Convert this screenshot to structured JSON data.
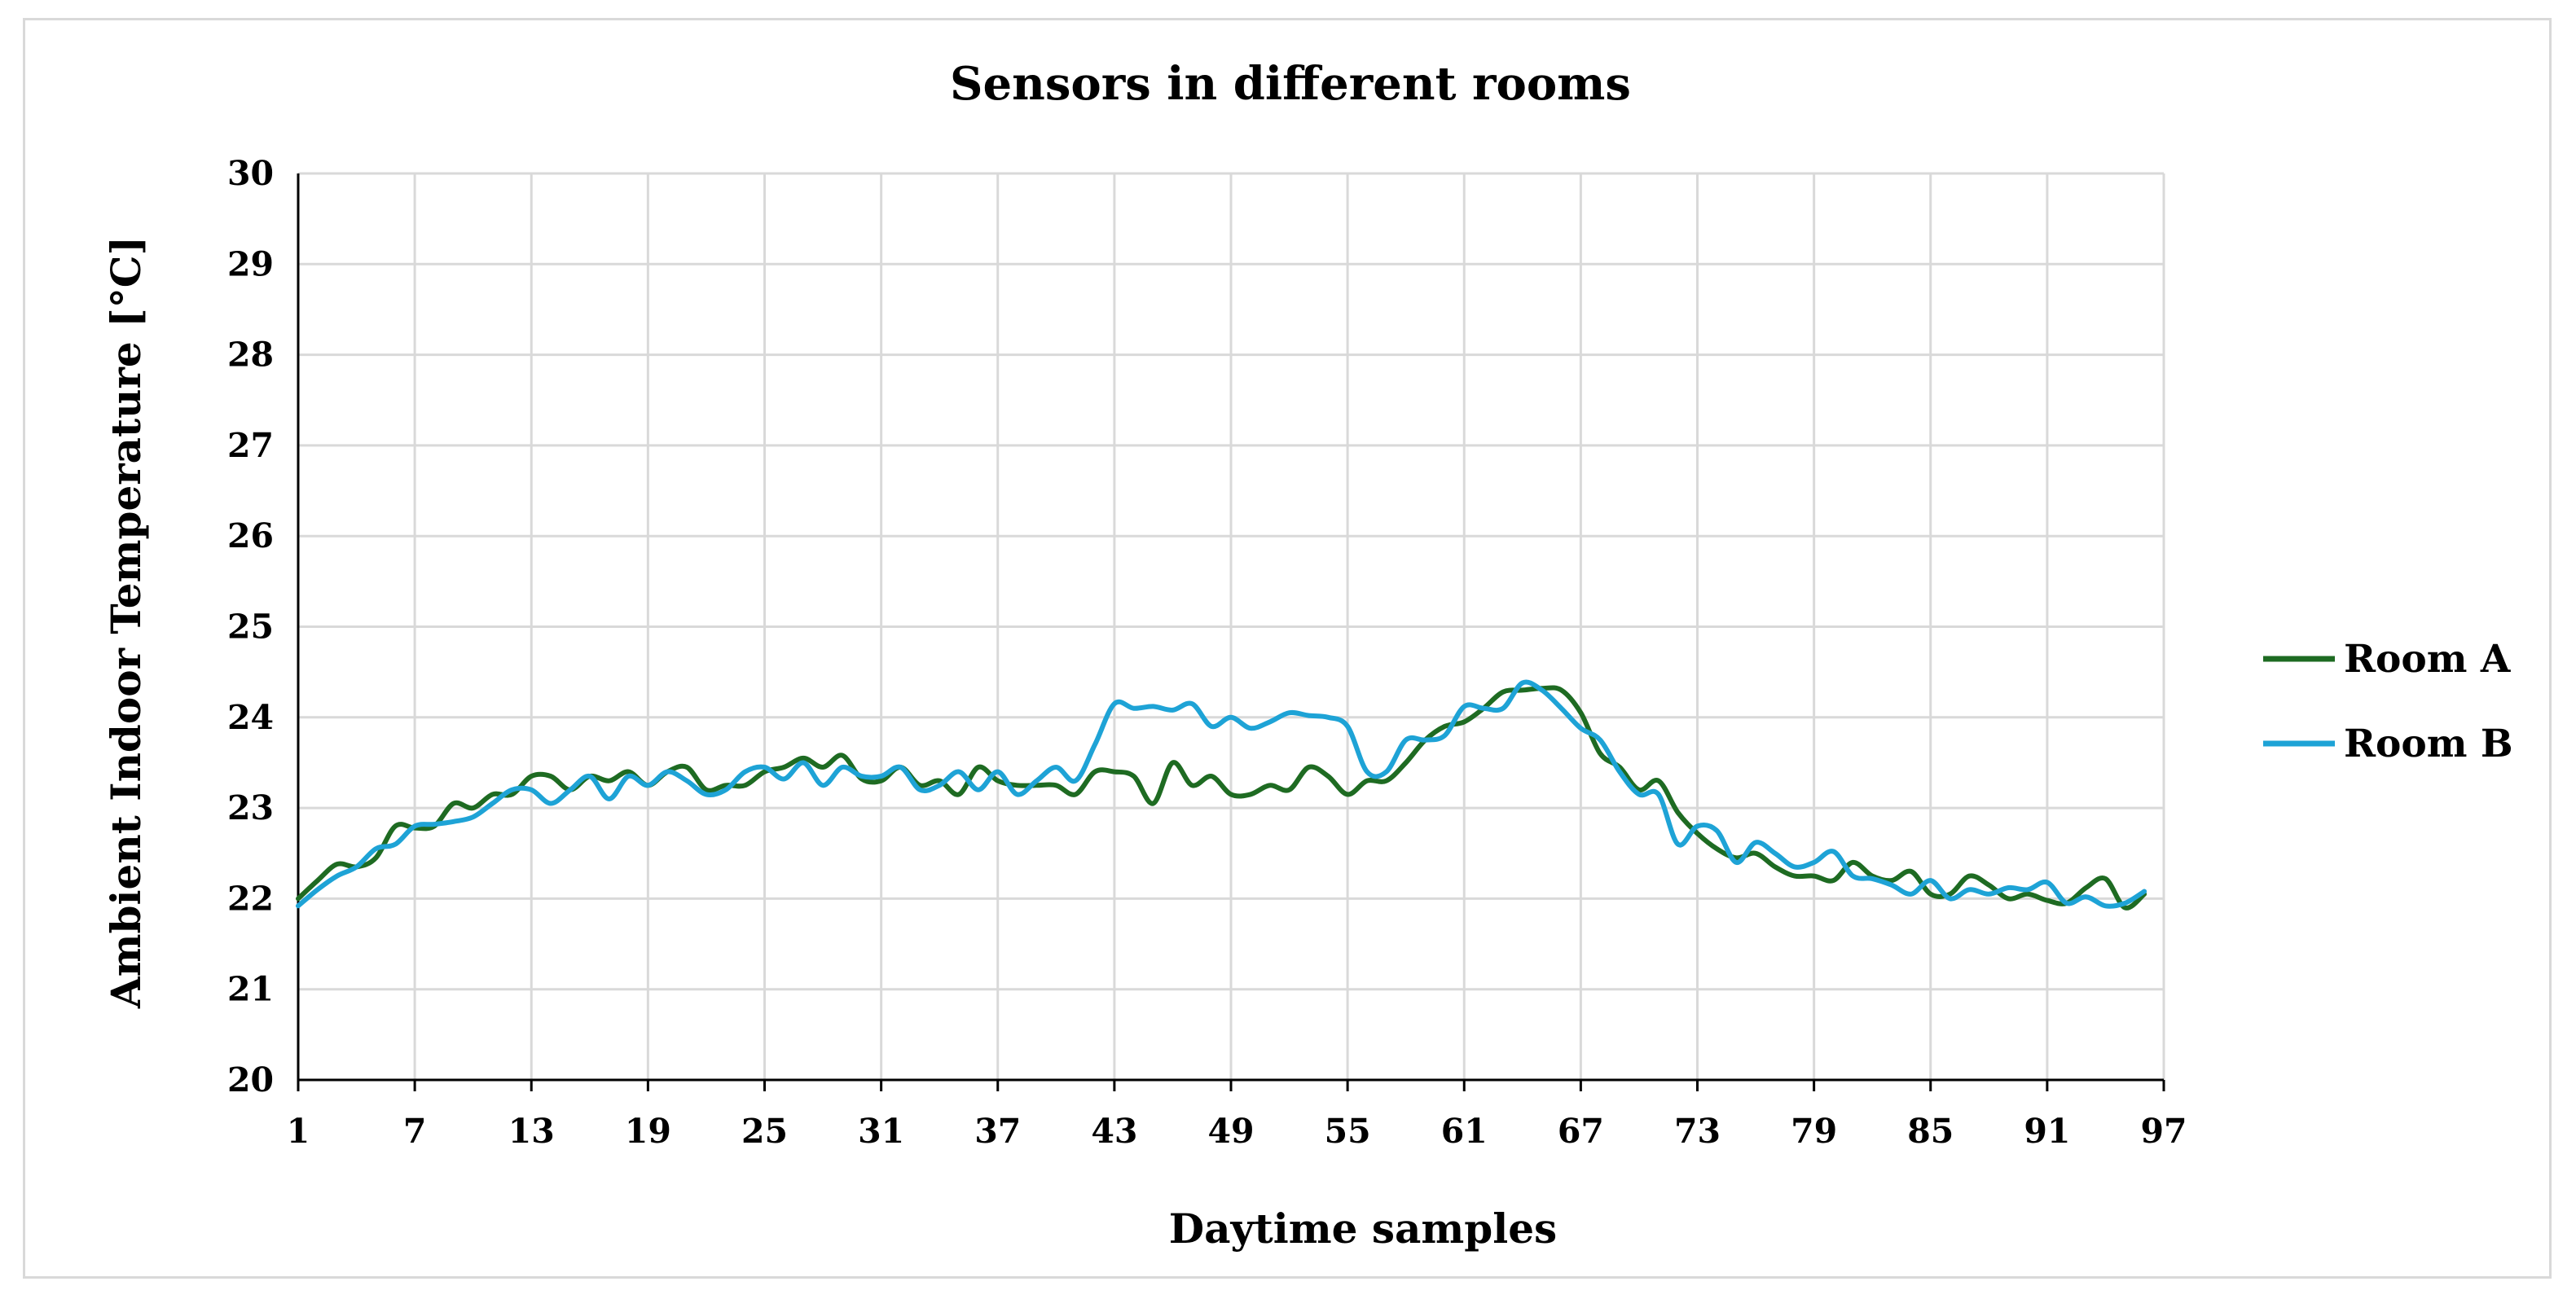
{
  "chart_data": {
    "type": "line",
    "title": "Sensors in different rooms",
    "xlabel": "Daytime samples",
    "ylabel": "Ambient Indoor Temperature [°C]",
    "ylim": [
      20,
      30
    ],
    "xlim": [
      1,
      97
    ],
    "x_ticks": [
      "1",
      "7",
      "13",
      "19",
      "25",
      "31",
      "37",
      "43",
      "49",
      "55",
      "61",
      "67",
      "73",
      "79",
      "85",
      "91",
      "97"
    ],
    "y_ticks": [
      "20",
      "21",
      "22",
      "23",
      "24",
      "25",
      "26",
      "27",
      "28",
      "29",
      "30"
    ],
    "grid": true,
    "legend_position": "right",
    "series": [
      {
        "name": "Room A",
        "color": "#1e6b22",
        "values": [
          22.0,
          22.2,
          22.38,
          22.35,
          22.45,
          22.8,
          22.78,
          22.8,
          23.05,
          23.0,
          23.15,
          23.15,
          23.35,
          23.35,
          23.2,
          23.35,
          23.3,
          23.4,
          23.25,
          23.4,
          23.45,
          23.2,
          23.25,
          23.25,
          23.4,
          23.45,
          23.55,
          23.45,
          23.58,
          23.32,
          23.3,
          23.45,
          23.25,
          23.3,
          23.15,
          23.45,
          23.3,
          23.25,
          23.25,
          23.25,
          23.15,
          23.4,
          23.4,
          23.35,
          23.05,
          23.5,
          23.25,
          23.35,
          23.15,
          23.15,
          23.25,
          23.2,
          23.45,
          23.35,
          23.15,
          23.3,
          23.3,
          23.5,
          23.75,
          23.9,
          23.95,
          24.1,
          24.28,
          24.3,
          24.32,
          24.3,
          24.05,
          23.6,
          23.45,
          23.2,
          23.3,
          22.95,
          22.72,
          22.55,
          22.45,
          22.5,
          22.35,
          22.25,
          22.25,
          22.2,
          22.4,
          22.25,
          22.2,
          22.3,
          22.05,
          22.05,
          22.25,
          22.15,
          22.0,
          22.05,
          21.98,
          21.95,
          22.12,
          22.22,
          21.9,
          22.05
        ]
      },
      {
        "name": "Room B",
        "color": "#1ea3d6",
        "values": [
          21.92,
          22.1,
          22.25,
          22.35,
          22.55,
          22.6,
          22.8,
          22.82,
          22.85,
          22.9,
          23.05,
          23.2,
          23.2,
          23.05,
          23.2,
          23.35,
          23.1,
          23.35,
          23.25,
          23.4,
          23.3,
          23.15,
          23.2,
          23.4,
          23.45,
          23.32,
          23.5,
          23.25,
          23.45,
          23.35,
          23.35,
          23.45,
          23.2,
          23.25,
          23.4,
          23.2,
          23.4,
          23.15,
          23.3,
          23.45,
          23.3,
          23.7,
          24.15,
          24.1,
          24.12,
          24.08,
          24.15,
          23.9,
          24.0,
          23.88,
          23.95,
          24.05,
          24.02,
          24.0,
          23.9,
          23.4,
          23.4,
          23.75,
          23.75,
          23.8,
          24.12,
          24.1,
          24.1,
          24.38,
          24.3,
          24.1,
          23.88,
          23.75,
          23.4,
          23.15,
          23.15,
          22.6,
          22.8,
          22.75,
          22.4,
          22.62,
          22.5,
          22.35,
          22.4,
          22.52,
          22.25,
          22.22,
          22.15,
          22.05,
          22.2,
          22.0,
          22.1,
          22.05,
          22.12,
          22.1,
          22.18,
          21.95,
          22.02,
          21.92,
          21.95,
          22.08
        ]
      }
    ]
  }
}
